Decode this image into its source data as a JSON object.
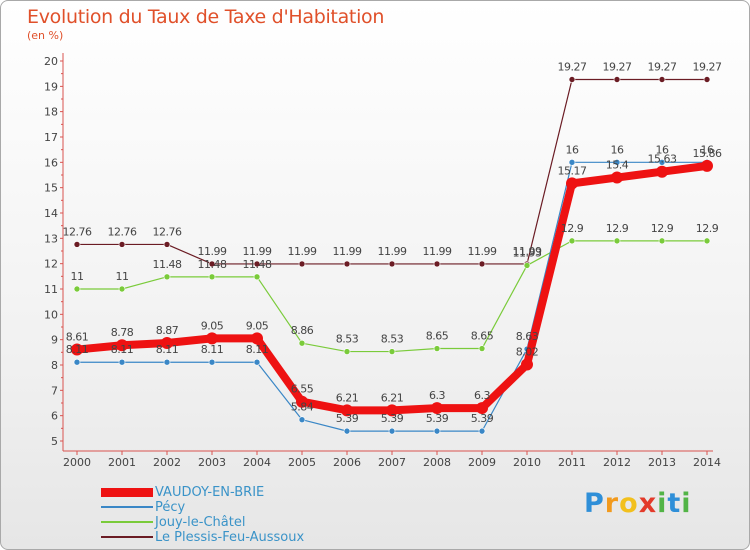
{
  "chart_data": {
    "type": "line",
    "title": "Evolution du Taux de Taxe d'Habitation",
    "subtitle": "(en %)",
    "x": [
      2000,
      2001,
      2002,
      2003,
      2004,
      2005,
      2006,
      2007,
      2008,
      2009,
      2010,
      2011,
      2012,
      2013,
      2014
    ],
    "ylim": [
      5,
      20
    ],
    "yticks": [
      5,
      6,
      7,
      8,
      9,
      10,
      11,
      12,
      13,
      14,
      15,
      16,
      17,
      18,
      19,
      20
    ],
    "grid": false,
    "legend_position": "bottom-left",
    "series": [
      {
        "name": "Le Plessis-Feu-Aussoux",
        "color": "#6b1c24",
        "values": [
          12.76,
          12.76,
          12.76,
          11.99,
          11.99,
          11.99,
          11.99,
          11.99,
          11.99,
          11.99,
          11.99,
          19.27,
          19.27,
          19.27,
          19.27
        ],
        "labels": [
          "12.76",
          "12.76",
          "12.76",
          "11.99",
          "11.99",
          "11.99",
          "11.99",
          "11.99",
          "11.99",
          "11.99",
          "11.99",
          "19.27",
          "19.27",
          "19.27",
          "19.27"
        ]
      },
      {
        "name": "Jouy-le-Châtel",
        "color": "#7acb3a",
        "values": [
          11,
          11,
          11.48,
          11.48,
          11.48,
          8.86,
          8.53,
          8.53,
          8.65,
          8.65,
          11.93,
          12.9,
          12.9,
          12.9,
          12.9
        ],
        "labels": [
          "11",
          "11",
          "11.48",
          "11.48",
          "11.48",
          "8.86",
          "8.53",
          "8.53",
          "8.65",
          "8.65",
          "11.93",
          "12.9",
          "12.9",
          "12.9",
          "12.9"
        ]
      },
      {
        "name": "Pécy",
        "color": "#3a87c6",
        "values": [
          8.11,
          8.11,
          8.11,
          8.11,
          8.11,
          5.84,
          5.39,
          5.39,
          5.39,
          5.39,
          8.63,
          16,
          16,
          16,
          16
        ],
        "labels": [
          "8.11",
          "8.11",
          "8.11",
          "8.11",
          "8.11",
          "5.84",
          "5.39",
          "5.39",
          "5.39",
          "5.39",
          "8.63",
          "16",
          "16",
          "16",
          "16"
        ]
      },
      {
        "name": "VAUDOY-EN-BRIE",
        "color": "#ee1212",
        "values": [
          8.61,
          8.78,
          8.87,
          9.05,
          9.05,
          6.55,
          6.21,
          6.21,
          6.3,
          6.3,
          8.02,
          15.17,
          15.4,
          15.63,
          15.86
        ],
        "labels": [
          "8.61",
          "8.78",
          "8.87",
          "9.05",
          "9.05",
          "6.55",
          "6.21",
          "6.21",
          "6.3",
          "6.3",
          "8.02",
          "15.17",
          "15.4",
          "15.63",
          "15.86"
        ]
      }
    ]
  },
  "legend": {
    "items": [
      {
        "label": "VAUDOY-EN-BRIE",
        "color": "#ee1212",
        "thick": true
      },
      {
        "label": "Pécy",
        "color": "#3a87c6",
        "thick": false
      },
      {
        "label": "Jouy-le-Châtel",
        "color": "#7acb3a",
        "thick": false
      },
      {
        "label": "Le Plessis-Feu-Aussoux",
        "color": "#6b1c24",
        "thick": false
      }
    ]
  },
  "logo": {
    "letters": [
      "P",
      "r",
      "o",
      "x",
      "i",
      "t",
      "i"
    ],
    "colors": [
      "#2f8fd8",
      "#f29a1d",
      "#f2c01d",
      "#e33a2a",
      "#52b446",
      "#2f8fd8",
      "#52b446"
    ]
  }
}
